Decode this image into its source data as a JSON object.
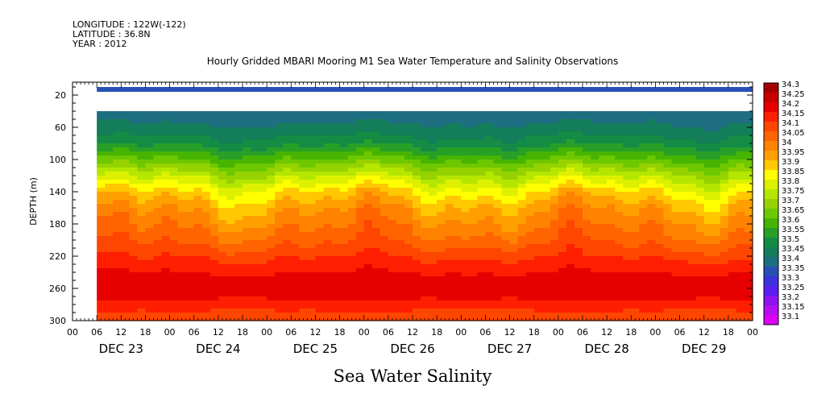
{
  "header": {
    "longitude": "LONGITUDE : 122W(-122)",
    "latitude": "LATITUDE : 36.8N",
    "year": "YEAR : 2012"
  },
  "chart_data": {
    "type": "heatmap",
    "title": "Hourly Gridded MBARI Mooring M1 Sea Water Temperature and Salinity Observations",
    "xlabel": "Sea Water Salinity",
    "ylabel": "DEPTH (m)",
    "ylim": [
      300,
      4
    ],
    "y_ticks": [
      "20",
      "60",
      "100",
      "140",
      "180",
      "220",
      "260",
      "300"
    ],
    "y_tick_values": [
      20,
      60,
      100,
      140,
      180,
      220,
      260,
      300
    ],
    "x_hour_labels": [
      "00",
      "06",
      "12",
      "18",
      "00",
      "06",
      "12",
      "18",
      "00",
      "06",
      "12",
      "18",
      "00",
      "06",
      "12",
      "18",
      "00",
      "06",
      "12",
      "18",
      "00",
      "06",
      "12",
      "18",
      "00",
      "06",
      "12",
      "18",
      "00"
    ],
    "x_day_labels": [
      "DEC 23",
      "DEC 24",
      "DEC 25",
      "DEC 26",
      "DEC 27",
      "DEC 28",
      "DEC 29"
    ],
    "data_start_hour": 6,
    "near_surface_band": {
      "depth_range": [
        10,
        16
      ],
      "salinity": 33.38
    },
    "data_gap_depth_range": [
      16,
      40
    ],
    "profile": [
      {
        "depth": 40,
        "salinity": 33.42
      },
      {
        "depth": 60,
        "salinity": 33.46
      },
      {
        "depth": 80,
        "salinity": 33.53
      },
      {
        "depth": 100,
        "salinity": 33.65
      },
      {
        "depth": 120,
        "salinity": 33.78
      },
      {
        "depth": 140,
        "salinity": 33.9
      },
      {
        "depth": 160,
        "salinity": 33.98
      },
      {
        "depth": 180,
        "salinity": 34.03
      },
      {
        "depth": 200,
        "salinity": 34.08
      },
      {
        "depth": 220,
        "salinity": 34.14
      },
      {
        "depth": 240,
        "salinity": 34.2
      },
      {
        "depth": 260,
        "salinity": 34.24
      },
      {
        "depth": 280,
        "salinity": 34.18
      },
      {
        "depth": 300,
        "salinity": 34.1
      }
    ],
    "colorbar": {
      "levels": [
        "34.3",
        "34.25",
        "34.2",
        "34.15",
        "34.1",
        "34.05",
        "34",
        "33.95",
        "33.9",
        "33.85",
        "33.8",
        "33.75",
        "33.7",
        "33.65",
        "33.6",
        "33.55",
        "33.5",
        "33.45",
        "33.4",
        "33.35",
        "33.3",
        "33.25",
        "33.2",
        "33.15",
        "33.1"
      ],
      "colors": [
        "#a50000",
        "#c80000",
        "#e60000",
        "#ff1e00",
        "#ff4600",
        "#ff6400",
        "#ff8200",
        "#ffa000",
        "#ffc800",
        "#ffff00",
        "#dcf000",
        "#b4e600",
        "#96d200",
        "#6ec800",
        "#46b400",
        "#28a028",
        "#148c46",
        "#147d5a",
        "#1e6e82",
        "#2850b4",
        "#3c32dc",
        "#5a1ef0",
        "#8c14f0",
        "#b40ff0",
        "#dc00f5"
      ]
    }
  }
}
